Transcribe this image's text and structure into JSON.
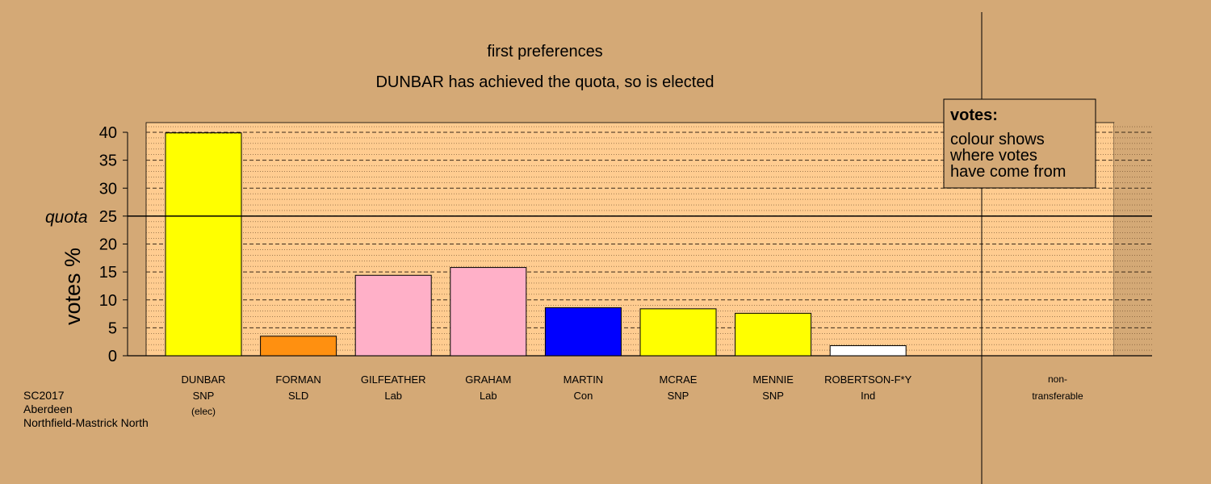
{
  "chart_data": {
    "type": "bar",
    "title": "first preferences",
    "subtitle": "DUNBAR has achieved the quota, so is elected",
    "ylabel": "votes %",
    "ylim": [
      0,
      42
    ],
    "yticks": [
      0,
      5,
      10,
      15,
      20,
      25,
      30,
      35,
      40
    ],
    "quota": 25,
    "quota_label": "quota",
    "grid": true,
    "categories": [
      {
        "name": "DUNBAR",
        "party": "SNP",
        "note": "(elec)",
        "value": 39.9,
        "color": "#FFFF00"
      },
      {
        "name": "FORMAN",
        "party": "SLD",
        "note": "",
        "value": 3.5,
        "color": "#FF9010"
      },
      {
        "name": "GILFEATHER",
        "party": "Lab",
        "note": "",
        "value": 14.4,
        "color": "#FFB0C8"
      },
      {
        "name": "GRAHAM",
        "party": "Lab",
        "note": "",
        "value": 15.8,
        "color": "#FFB0C8"
      },
      {
        "name": "MARTIN",
        "party": "Con",
        "note": "",
        "value": 8.6,
        "color": "#0000FF"
      },
      {
        "name": "MCRAE",
        "party": "SNP",
        "note": "",
        "value": 8.4,
        "color": "#FFFF00"
      },
      {
        "name": "MENNIE",
        "party": "SNP",
        "note": "",
        "value": 7.6,
        "color": "#FFFF00"
      },
      {
        "name": "ROBERTSON-F*Y",
        "party": "Ind",
        "note": "",
        "value": 1.8,
        "color": "#FFFFFF"
      }
    ],
    "nontransferable": {
      "line1": "non-",
      "line2": "transferable",
      "value": 0
    },
    "legend": {
      "title": "votes:",
      "lines": [
        "colour shows",
        "where votes",
        "have come from"
      ],
      "position": "top-right"
    }
  },
  "footer": {
    "line1": "SC2017",
    "line2": "Aberdeen",
    "line3": "Northfield-Mastrick North"
  }
}
